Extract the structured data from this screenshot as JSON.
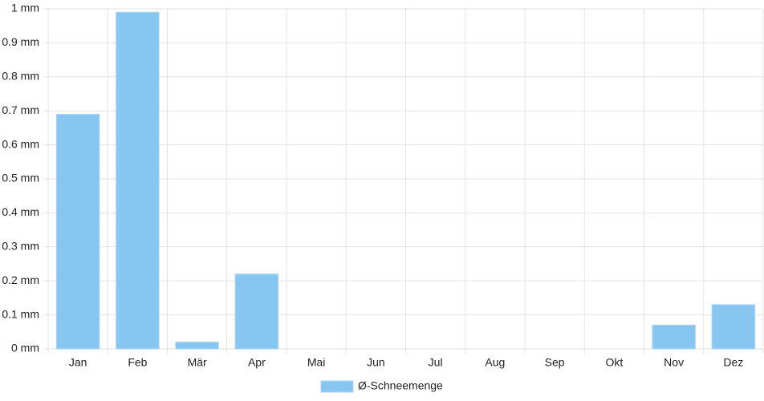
{
  "chart_data": {
    "type": "bar",
    "categories": [
      "Jan",
      "Feb",
      "Mär",
      "Apr",
      "Mai",
      "Jun",
      "Jul",
      "Aug",
      "Sep",
      "Okt",
      "Nov",
      "Dez"
    ],
    "series": [
      {
        "name": "Ø-Schneemenge",
        "color": "#88c6f2",
        "values": [
          0.69,
          0.99,
          0.02,
          0.22,
          0,
          0,
          0,
          0,
          0,
          0,
          0.07,
          0.13
        ]
      }
    ],
    "ylim": [
      0,
      1
    ],
    "yticks": [
      {
        "value": 0,
        "label": "0 mm"
      },
      {
        "value": 0.1,
        "label": "0.1 mm"
      },
      {
        "value": 0.2,
        "label": "0.2 mm"
      },
      {
        "value": 0.3,
        "label": "0.3 mm"
      },
      {
        "value": 0.4,
        "label": "0.4 mm"
      },
      {
        "value": 0.5,
        "label": "0.5 mm"
      },
      {
        "value": 0.6,
        "label": "0.6 mm"
      },
      {
        "value": 0.7,
        "label": "0.7 mm"
      },
      {
        "value": 0.8,
        "label": "0.8 mm"
      },
      {
        "value": 0.9,
        "label": "0.9 mm"
      },
      {
        "value": 1,
        "label": "1 mm"
      }
    ],
    "grid": true,
    "legend": "bottom"
  }
}
